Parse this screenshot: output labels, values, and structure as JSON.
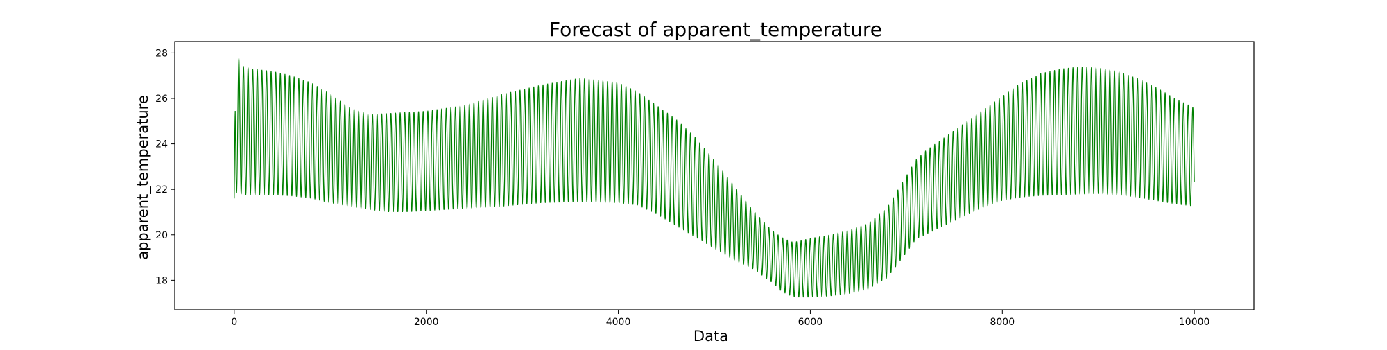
{
  "chart_data": {
    "type": "line",
    "title": "Forecast of apparent_temperature",
    "xlabel": "Data",
    "ylabel": "apparent_temperature",
    "xlim": [
      -620,
      10620
    ],
    "ylim": [
      16.7,
      28.5
    ],
    "x_ticks": [
      0,
      2000,
      4000,
      6000,
      8000,
      10000
    ],
    "y_ticks": [
      18,
      20,
      22,
      24,
      26,
      28
    ],
    "grid": false,
    "legend": "none",
    "series_color": "#008000",
    "oscillation_period": 48,
    "series": [
      {
        "x": [
          0,
          10,
          20,
          30,
          60,
          100,
          200,
          400,
          600,
          800,
          1000,
          1200,
          1400,
          1600,
          1800,
          2000,
          2400,
          2800,
          3200,
          3600,
          4000,
          4200,
          4400,
          4600,
          4800,
          5000,
          5200,
          5400,
          5600,
          5700,
          5800,
          5850,
          5900,
          6000,
          6200,
          6400,
          6600,
          6800,
          7000,
          7100,
          7200,
          7400,
          7600,
          7800,
          8000,
          8200,
          8400,
          8600,
          8800,
          9000,
          9200,
          9400,
          9600,
          9800,
          10000
        ],
        "upper": [
          21.6,
          27.6,
          27.8,
          28.0,
          27.6,
          27.4,
          27.3,
          27.2,
          27.0,
          26.7,
          26.2,
          25.6,
          25.3,
          25.35,
          25.4,
          25.45,
          25.7,
          26.2,
          26.6,
          26.9,
          26.7,
          26.3,
          25.7,
          25.1,
          24.3,
          23.3,
          22.2,
          21.1,
          20.2,
          19.9,
          19.7,
          19.7,
          19.75,
          19.85,
          20.0,
          20.2,
          20.5,
          21.2,
          22.6,
          23.3,
          23.7,
          24.3,
          24.9,
          25.5,
          26.1,
          26.7,
          27.1,
          27.3,
          27.4,
          27.35,
          27.2,
          26.9,
          26.5,
          26.0,
          25.6
        ],
        "lower": [
          20.7,
          21.8,
          21.8,
          21.9,
          21.8,
          21.75,
          21.75,
          21.75,
          21.7,
          21.6,
          21.4,
          21.25,
          21.1,
          21.0,
          21.0,
          21.05,
          21.15,
          21.25,
          21.4,
          21.45,
          21.4,
          21.3,
          20.9,
          20.4,
          19.9,
          19.4,
          18.9,
          18.5,
          17.9,
          17.5,
          17.3,
          17.25,
          17.25,
          17.25,
          17.3,
          17.4,
          17.6,
          18.1,
          19.2,
          19.8,
          20.0,
          20.4,
          20.8,
          21.2,
          21.5,
          21.65,
          21.72,
          21.75,
          21.78,
          21.8,
          21.75,
          21.65,
          21.5,
          21.35,
          21.25
        ]
      }
    ]
  }
}
